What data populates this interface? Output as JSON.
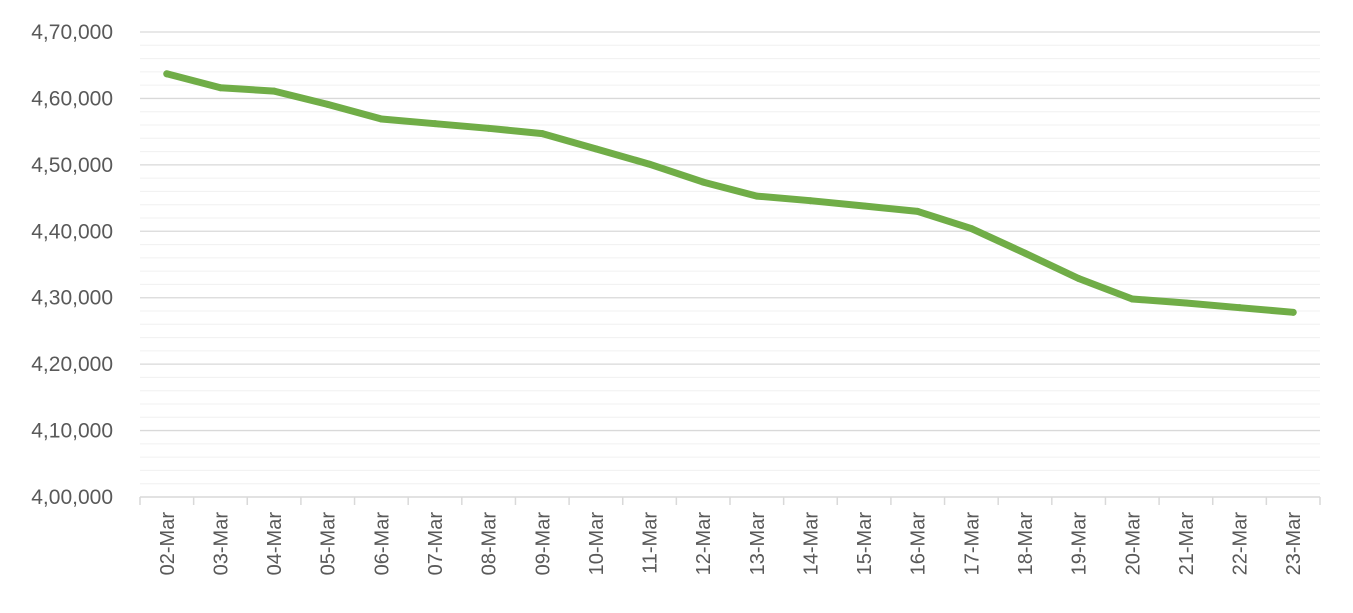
{
  "chart_data": {
    "type": "line",
    "title": "",
    "xlabel": "",
    "ylabel": "",
    "categories": [
      "02-Mar",
      "03-Mar",
      "04-Mar",
      "05-Mar",
      "06-Mar",
      "07-Mar",
      "08-Mar",
      "09-Mar",
      "10-Mar",
      "11-Mar",
      "12-Mar",
      "13-Mar",
      "14-Mar",
      "15-Mar",
      "16-Mar",
      "17-Mar",
      "18-Mar",
      "19-Mar",
      "20-Mar",
      "21-Mar",
      "22-Mar",
      "23-Mar"
    ],
    "series": [
      {
        "values": [
          463700,
          461600,
          461100,
          459100,
          456900,
          456200,
          455500,
          454700,
          452400,
          450100,
          447400,
          445300,
          444600,
          443800,
          443000,
          440400,
          436700,
          432900,
          429800,
          429200,
          428500,
          427800
        ],
        "color": "#70AD47"
      }
    ],
    "ylim": [
      400000,
      470000
    ],
    "yticks": [
      400000,
      410000,
      420000,
      430000,
      440000,
      450000,
      460000,
      470000
    ],
    "ytick_labels": [
      "4,00,000",
      "4,10,000",
      "4,20,000",
      "4,30,000",
      "4,40,000",
      "4,50,000",
      "4,60,000",
      "4,70,000"
    ],
    "grid": true,
    "minor_grid": true,
    "legend": "none"
  }
}
